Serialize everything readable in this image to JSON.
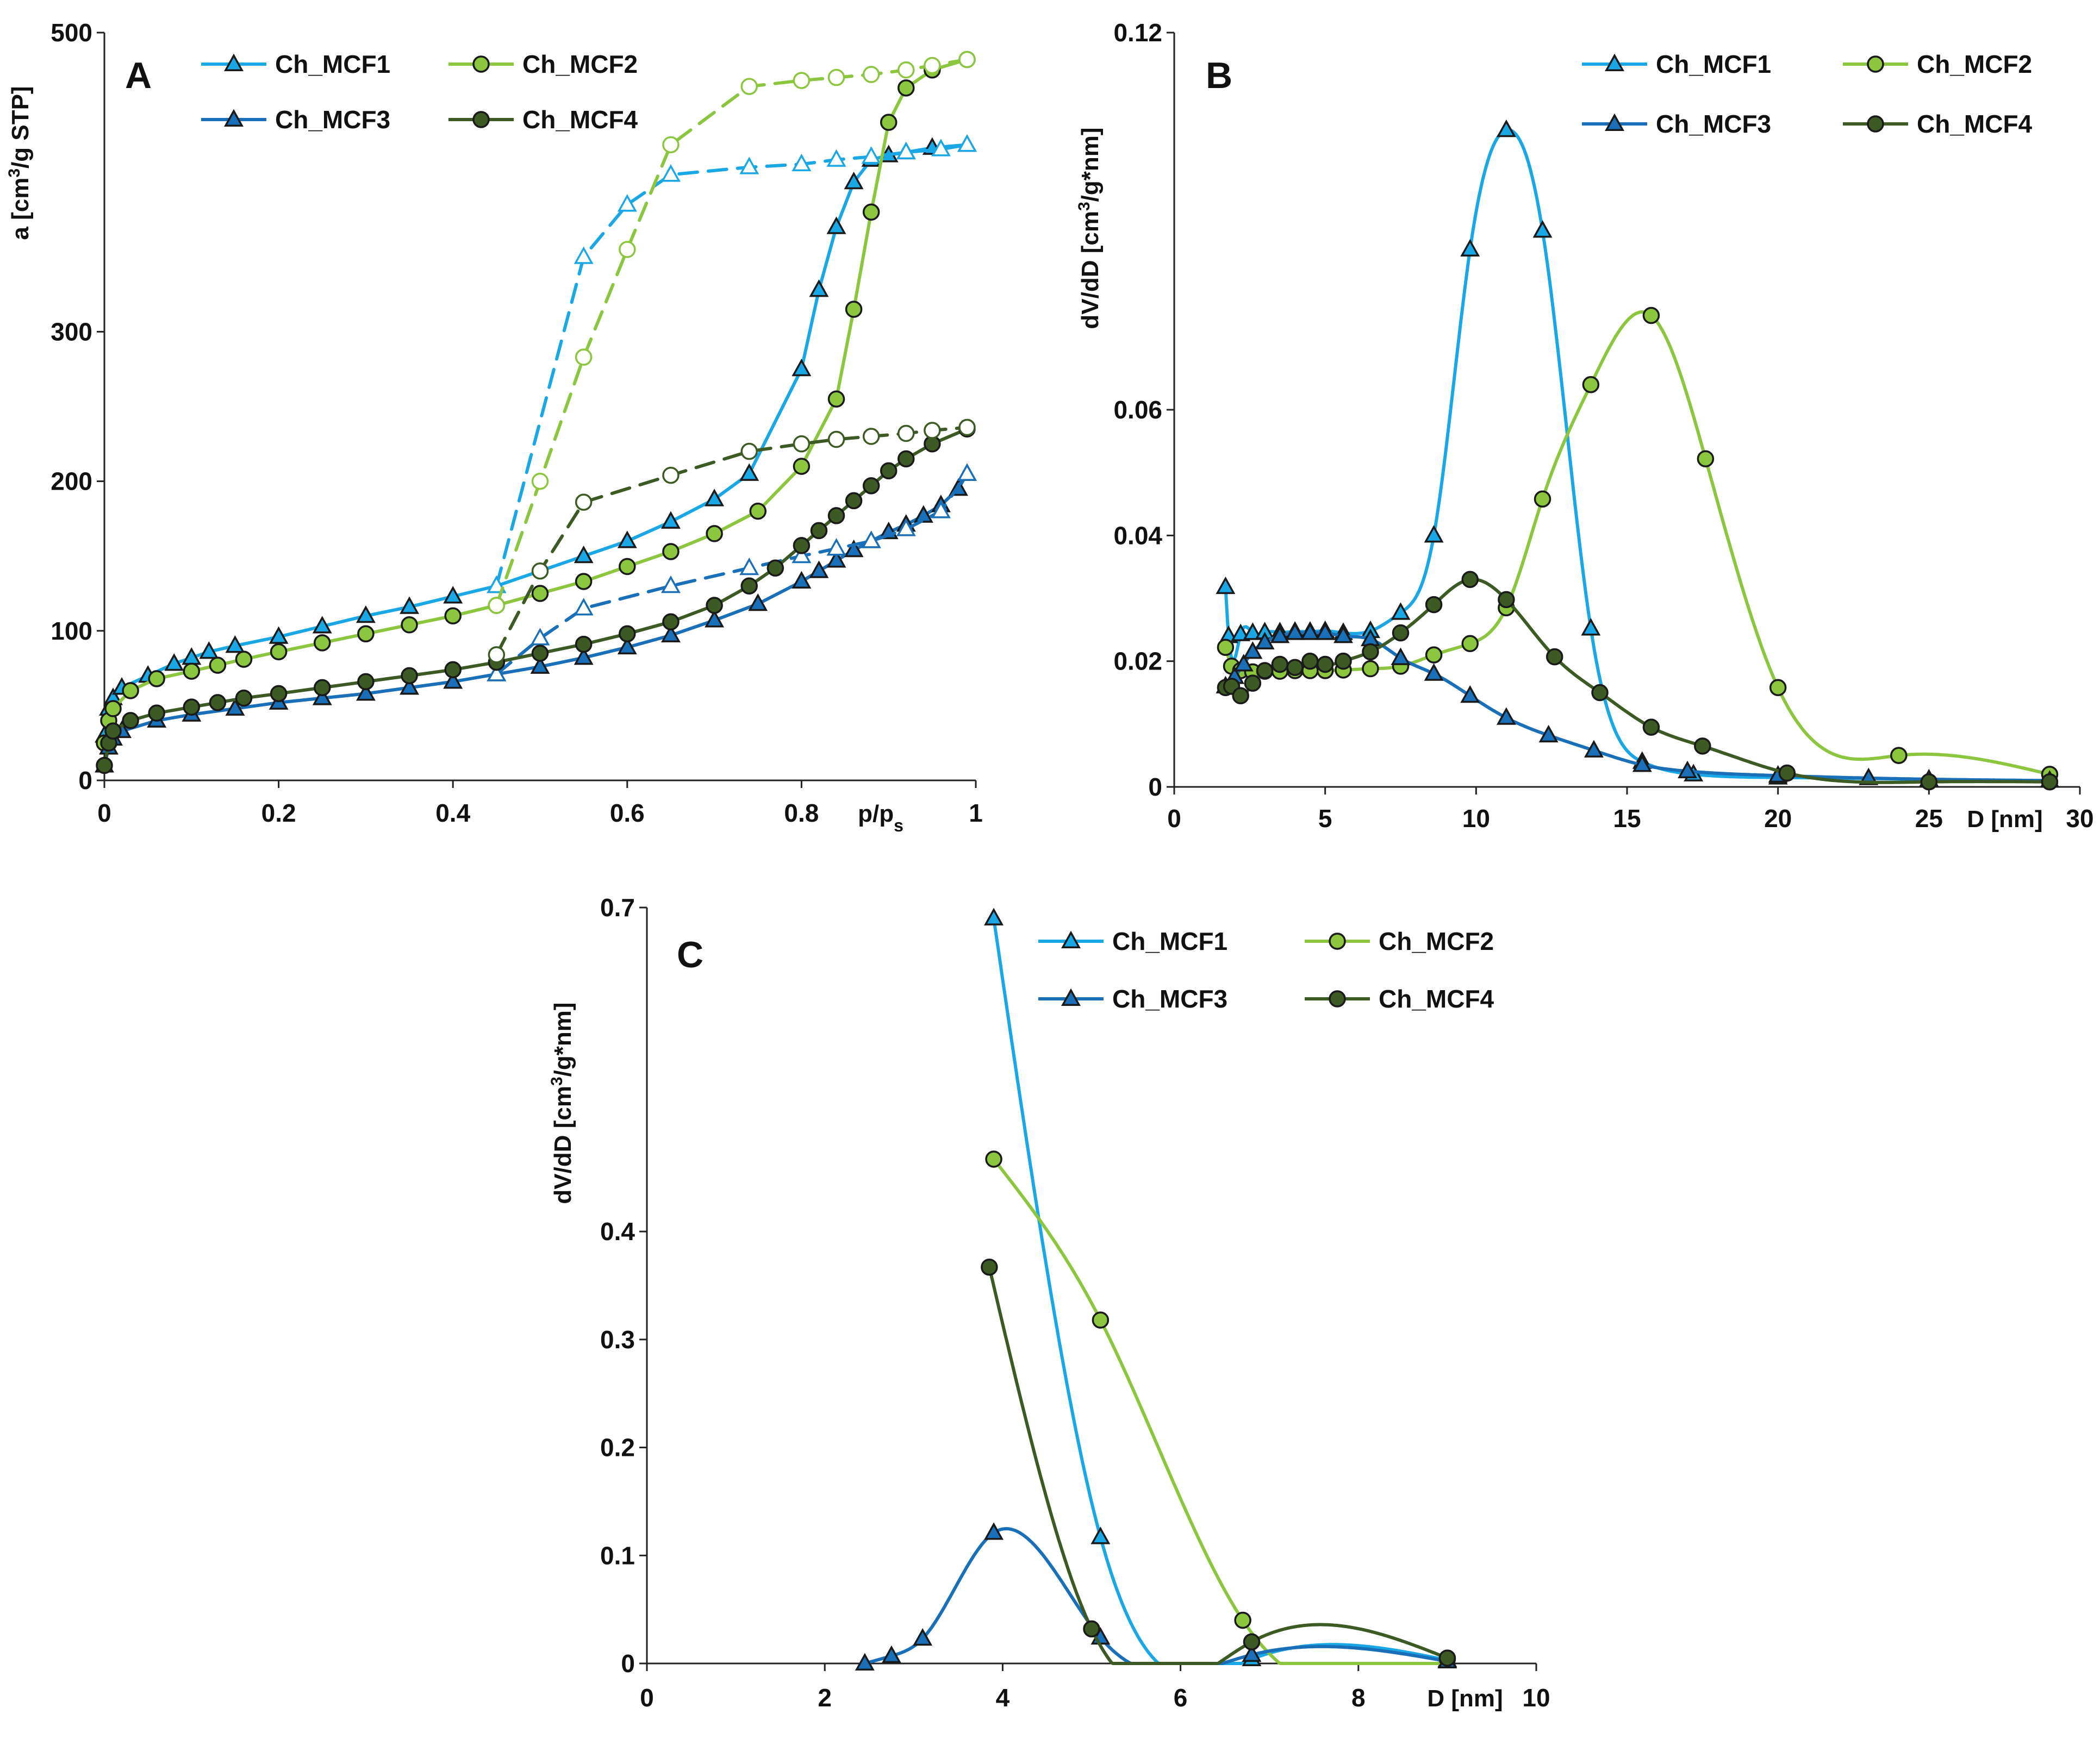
{
  "colors": {
    "Ch_MCF1": "#1aa7e6",
    "Ch_MCF2": "#8cc63f",
    "Ch_MCF3": "#1a6fb9",
    "Ch_MCF4": "#3d5a24"
  },
  "chart_data": [
    {
      "type": "line",
      "panel": "A",
      "xlabel": "p/ps",
      "xlabel_main": "p/p",
      "xlabel_sub": "s",
      "ylabel": "a [cm3/g STP]",
      "ylabel_parts": [
        "a [cm",
        "3",
        "/g STP]"
      ],
      "xlim": [
        0,
        1
      ],
      "ylim": [
        0,
        500
      ],
      "xticks": [
        0,
        0.2,
        0.4,
        0.6,
        0.8,
        1
      ],
      "xtick_labels": [
        "0",
        "0.2",
        "0.4",
        "0.6",
        "0.8",
        "1"
      ],
      "yticks": [
        0,
        100,
        200,
        300,
        500
      ],
      "ytick_labels": [
        "0",
        "100",
        "200",
        "300",
        "500"
      ],
      "legend": [
        "Ch_MCF1",
        "Ch_MCF2",
        "Ch_MCF3",
        "Ch_MCF4"
      ],
      "series": [
        {
          "name": "Ch_MCF1",
          "branch": "adsorption",
          "marker": "triangle",
          "filled": true,
          "x": [
            0.0,
            0.005,
            0.01,
            0.02,
            0.05,
            0.08,
            0.1,
            0.12,
            0.15,
            0.2,
            0.25,
            0.3,
            0.35,
            0.4,
            0.45,
            0.55,
            0.6,
            0.65,
            0.7,
            0.74,
            0.8,
            0.82,
            0.84,
            0.86,
            0.88,
            0.9,
            0.92,
            0.95,
            0.99
          ],
          "y": [
            30,
            48,
            55,
            62,
            70,
            78,
            82,
            86,
            90,
            96,
            103,
            110,
            116,
            123,
            130,
            150,
            160,
            173,
            188,
            205,
            275,
            328,
            370,
            400,
            415,
            418,
            420,
            423,
            425
          ]
        },
        {
          "name": "Ch_MCF1",
          "branch": "desorption",
          "marker": "triangle",
          "filled": false,
          "x": [
            0.45,
            0.55,
            0.6,
            0.65,
            0.74,
            0.8,
            0.84,
            0.88,
            0.92,
            0.96,
            0.99
          ],
          "y": [
            130,
            350,
            385,
            405,
            410,
            412,
            415,
            417,
            420,
            422,
            425
          ]
        },
        {
          "name": "Ch_MCF2",
          "branch": "adsorption",
          "marker": "circle",
          "filled": true,
          "x": [
            0.0,
            0.005,
            0.01,
            0.03,
            0.06,
            0.1,
            0.13,
            0.16,
            0.2,
            0.25,
            0.3,
            0.35,
            0.4,
            0.45,
            0.5,
            0.55,
            0.6,
            0.65,
            0.7,
            0.75,
            0.8,
            0.84,
            0.86,
            0.88,
            0.9,
            0.92,
            0.95,
            0.99
          ],
          "y": [
            25,
            40,
            48,
            60,
            68,
            73,
            77,
            81,
            86,
            92,
            98,
            104,
            110,
            117,
            125,
            133,
            143,
            153,
            165,
            180,
            210,
            255,
            315,
            380,
            440,
            463,
            475,
            482
          ]
        },
        {
          "name": "Ch_MCF2",
          "branch": "desorption",
          "marker": "circle",
          "filled": false,
          "x": [
            0.45,
            0.5,
            0.55,
            0.6,
            0.65,
            0.74,
            0.8,
            0.84,
            0.88,
            0.92,
            0.95,
            0.99
          ],
          "y": [
            117,
            200,
            283,
            355,
            425,
            464,
            468,
            470,
            472,
            475,
            478,
            482
          ]
        },
        {
          "name": "Ch_MCF3",
          "branch": "adsorption",
          "marker": "triangle",
          "filled": true,
          "x": [
            0.0,
            0.005,
            0.01,
            0.02,
            0.06,
            0.1,
            0.15,
            0.2,
            0.25,
            0.3,
            0.35,
            0.4,
            0.45,
            0.5,
            0.55,
            0.6,
            0.65,
            0.7,
            0.75,
            0.8,
            0.82,
            0.84,
            0.86,
            0.88,
            0.9,
            0.92,
            0.94,
            0.96,
            0.98,
            0.99
          ],
          "y": [
            10,
            22,
            28,
            33,
            40,
            44,
            48,
            52,
            55,
            58,
            62,
            66,
            71,
            76,
            82,
            89,
            97,
            107,
            118,
            133,
            140,
            147,
            154,
            160,
            166,
            171,
            177,
            184,
            195,
            205
          ]
        },
        {
          "name": "Ch_MCF3",
          "branch": "desorption",
          "marker": "triangle",
          "filled": false,
          "x": [
            0.45,
            0.5,
            0.55,
            0.65,
            0.74,
            0.8,
            0.84,
            0.88,
            0.92,
            0.96,
            0.99
          ],
          "y": [
            71,
            95,
            115,
            130,
            142,
            150,
            155,
            160,
            168,
            180,
            205
          ]
        },
        {
          "name": "Ch_MCF4",
          "branch": "adsorption",
          "marker": "circle",
          "filled": true,
          "x": [
            0.0,
            0.005,
            0.01,
            0.03,
            0.06,
            0.1,
            0.13,
            0.16,
            0.2,
            0.25,
            0.3,
            0.35,
            0.4,
            0.45,
            0.5,
            0.55,
            0.6,
            0.65,
            0.7,
            0.74,
            0.77,
            0.8,
            0.82,
            0.84,
            0.86,
            0.88,
            0.9,
            0.92,
            0.95,
            0.99
          ],
          "y": [
            10,
            25,
            33,
            40,
            45,
            49,
            52,
            55,
            58,
            62,
            66,
            70,
            74,
            79,
            85,
            91,
            98,
            106,
            117,
            130,
            142,
            157,
            167,
            177,
            187,
            197,
            207,
            215,
            225,
            235
          ]
        },
        {
          "name": "Ch_MCF4",
          "branch": "desorption",
          "marker": "circle",
          "filled": false,
          "x": [
            0.45,
            0.5,
            0.55,
            0.65,
            0.74,
            0.8,
            0.84,
            0.88,
            0.92,
            0.95,
            0.99
          ],
          "y": [
            84,
            140,
            186,
            204,
            220,
            225,
            228,
            230,
            232,
            234,
            236
          ]
        }
      ]
    },
    {
      "type": "line",
      "panel": "B",
      "xlabel": "D [nm]",
      "ylabel": "dV/dD [cm3/g*nm]",
      "ylabel_parts": [
        "dV/dD [cm",
        "3",
        "/g*nm]"
      ],
      "xlim": [
        0,
        30
      ],
      "ylim": [
        0,
        0.12
      ],
      "xticks": [
        0,
        5,
        10,
        15,
        20,
        25,
        30
      ],
      "xtick_labels": [
        "0",
        "5",
        "10",
        "15",
        "20",
        "25",
        "30"
      ],
      "yticks": [
        0,
        0.02,
        0.04,
        0.06,
        0.12
      ],
      "ytick_labels": [
        "0",
        "0.02",
        "0.04",
        "0.06",
        "0.12"
      ],
      "legend": [
        "Ch_MCF1",
        "Ch_MCF2",
        "Ch_MCF3",
        "Ch_MCF4"
      ],
      "series": [
        {
          "name": "Ch_MCF1",
          "marker": "triangle",
          "x": [
            1.7,
            1.8,
            2.2,
            2.6,
            3.0,
            3.5,
            4.0,
            4.5,
            5.0,
            5.6,
            6.5,
            7.5,
            8.6,
            9.8,
            11.0,
            12.2,
            13.8,
            15.5,
            17.2,
            20,
            25,
            29
          ],
          "y": [
            0.0318,
            0.024,
            0.0243,
            0.0245,
            0.0246,
            0.0246,
            0.0247,
            0.0247,
            0.0248,
            0.0245,
            0.0248,
            0.0277,
            0.04,
            0.0855,
            0.1045,
            0.0885,
            0.0252,
            0.004,
            0.002,
            0.0015,
            0.0012,
            0.001
          ]
        },
        {
          "name": "Ch_MCF2",
          "marker": "circle",
          "x": [
            1.7,
            1.9,
            2.2,
            2.6,
            3.0,
            3.5,
            4.0,
            4.5,
            5.0,
            5.6,
            6.5,
            7.5,
            8.6,
            9.8,
            11.0,
            12.2,
            13.8,
            15.8,
            17.6,
            20.0,
            24.0,
            29.0
          ],
          "y": [
            0.0222,
            0.0192,
            0.0185,
            0.0183,
            0.0184,
            0.0184,
            0.0185,
            0.0185,
            0.0185,
            0.0186,
            0.0188,
            0.0192,
            0.021,
            0.0228,
            0.0285,
            0.0458,
            0.064,
            0.075,
            0.0522,
            0.0158,
            0.005,
            0.002
          ]
        },
        {
          "name": "Ch_MCF3",
          "marker": "triangle",
          "x": [
            1.7,
            2.0,
            2.3,
            2.6,
            3.0,
            3.5,
            4.0,
            4.5,
            5.0,
            5.6,
            6.5,
            7.5,
            8.6,
            9.8,
            11.0,
            12.4,
            13.9,
            15.5,
            17.0,
            20.0,
            23.0,
            29.0
          ],
          "y": [
            0.016,
            0.0175,
            0.0195,
            0.0215,
            0.023,
            0.024,
            0.0245,
            0.0245,
            0.0245,
            0.024,
            0.0235,
            0.0205,
            0.018,
            0.0145,
            0.011,
            0.0082,
            0.0058,
            0.0035,
            0.0025,
            0.0018,
            0.0014,
            0.001
          ]
        },
        {
          "name": "Ch_MCF4",
          "marker": "circle",
          "x": [
            1.7,
            1.9,
            2.2,
            2.6,
            3.0,
            3.5,
            4.0,
            4.5,
            5.0,
            5.6,
            6.5,
            7.5,
            8.6,
            9.8,
            11.0,
            12.6,
            14.1,
            15.8,
            17.5,
            20.3,
            25.0,
            29.0
          ],
          "y": [
            0.0158,
            0.016,
            0.0145,
            0.0165,
            0.0185,
            0.0195,
            0.019,
            0.02,
            0.0195,
            0.02,
            0.0215,
            0.0245,
            0.029,
            0.033,
            0.0298,
            0.0207,
            0.015,
            0.0095,
            0.0065,
            0.0022,
            0.0008,
            0.0008
          ]
        }
      ]
    },
    {
      "type": "line",
      "panel": "C",
      "xlabel": "D [nm]",
      "ylabel": "dV/dD [cm3/g*nm]",
      "ylabel_parts": [
        "dV/dD [cm",
        "3",
        "/g*nm]"
      ],
      "xlim": [
        0,
        10
      ],
      "ylim": [
        0,
        0.7
      ],
      "xticks": [
        0,
        2,
        4,
        6,
        8,
        10
      ],
      "xtick_labels": [
        "0",
        "2",
        "4",
        "6",
        "8",
        "10"
      ],
      "yticks": [
        0,
        0.1,
        0.2,
        0.3,
        0.4,
        0.7
      ],
      "ytick_labels": [
        "0",
        "0.1",
        "0.2",
        "0.3",
        "0.4",
        "0.7"
      ],
      "legend": [
        "Ch_MCF1",
        "Ch_MCF2",
        "Ch_MCF3",
        "Ch_MCF4"
      ],
      "series": [
        {
          "name": "Ch_MCF1",
          "marker": "triangle",
          "x": [
            3.9,
            5.1,
            6.8,
            9.0
          ],
          "y": [
            0.69,
            0.117,
            0.004,
            0.003
          ]
        },
        {
          "name": "Ch_MCF2",
          "marker": "circle",
          "x": [
            3.9,
            5.1,
            6.7,
            9.0
          ],
          "y": [
            0.467,
            0.318,
            0.04,
            0.004
          ]
        },
        {
          "name": "Ch_MCF3",
          "marker": "triangle",
          "x": [
            2.45,
            2.75,
            3.1,
            3.9,
            5.1,
            6.8,
            9.0
          ],
          "y": [
            0.0,
            0.007,
            0.023,
            0.121,
            0.024,
            0.008,
            0.002
          ]
        },
        {
          "name": "Ch_MCF4",
          "marker": "circle",
          "x": [
            3.85,
            5.0,
            6.8,
            9.0
          ],
          "y": [
            0.367,
            0.032,
            0.02,
            0.005
          ]
        }
      ]
    }
  ]
}
